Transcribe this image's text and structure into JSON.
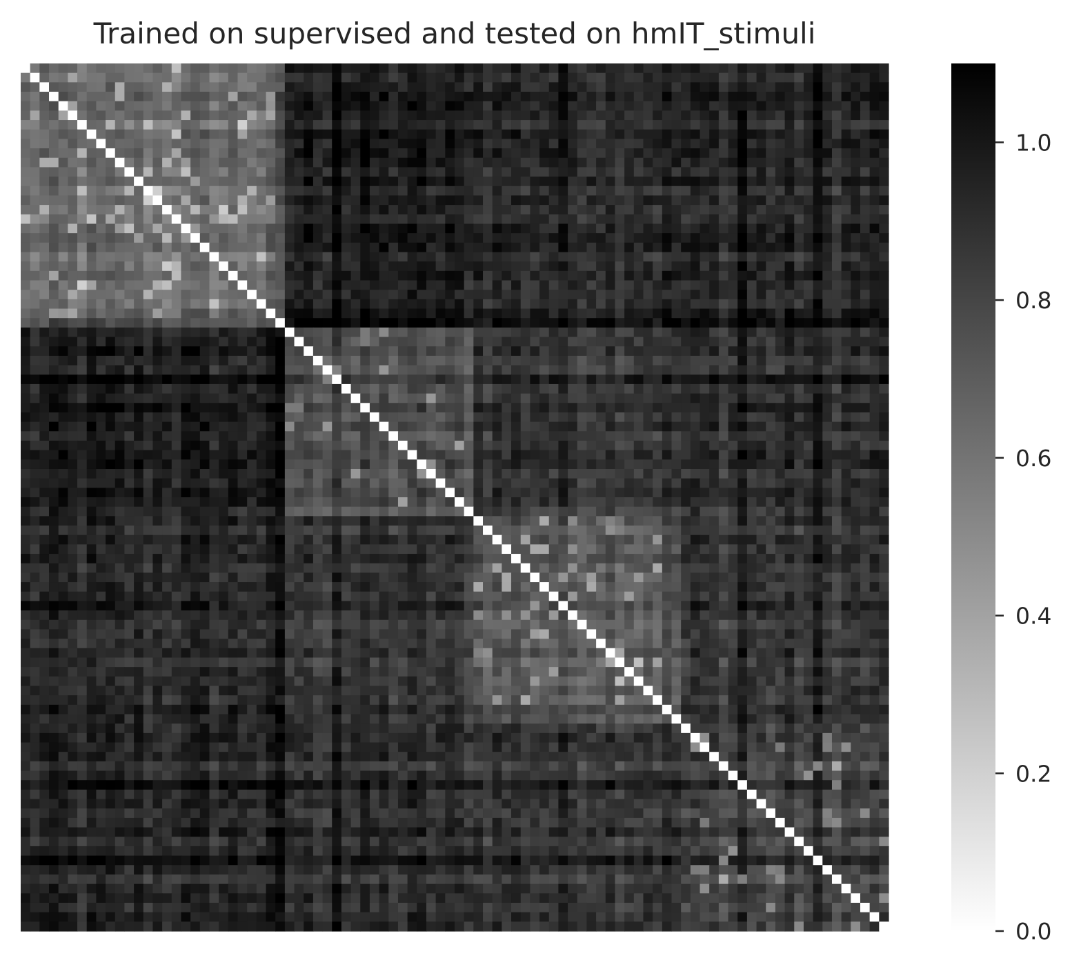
{
  "chart_data": {
    "type": "heatmap",
    "title": "Trained on supervised and tested on hmIT_stimuli",
    "xlabel": "",
    "ylabel": "",
    "n": 92,
    "colormap": "Greys (white = 0.0, black = 1.1)",
    "value_range": [
      0.0,
      1.1
    ],
    "diagonal_value": 0.0,
    "grid": false,
    "blocks": [
      {
        "start": 0,
        "end": 28,
        "within_mean": 0.62
      },
      {
        "start": 28,
        "end": 48,
        "within_mean": 0.75
      },
      {
        "start": 48,
        "end": 70,
        "within_mean": 0.74
      },
      {
        "start": 70,
        "end": 92,
        "within_mean": 0.8
      }
    ],
    "between_block_mean": {
      "0-1": 0.96,
      "0-2": 0.93,
      "0-3": 0.92,
      "1-2": 0.88,
      "1-3": 0.89,
      "2-3": 0.88
    },
    "dark_rows": [
      27,
      33,
      76,
      84
    ],
    "colorbar": {
      "ticks": [
        0.0,
        0.2,
        0.4,
        0.6,
        0.8,
        1.0
      ],
      "tick_labels": [
        "0.0",
        "0.2",
        "0.4",
        "0.6",
        "0.8",
        "1.0"
      ],
      "placement": "right"
    }
  }
}
